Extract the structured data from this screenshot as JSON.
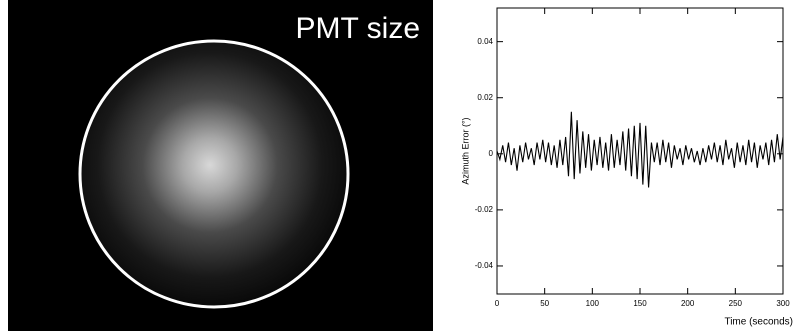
{
  "image": {
    "label": "PMT size"
  },
  "chart_data": {
    "type": "line",
    "y_label": "Azimuth Error (°)",
    "x_label": "Time (seconds)",
    "color": "#000000",
    "xlim": [
      0,
      300
    ],
    "xticks": [
      0,
      50,
      100,
      150,
      200,
      250,
      300
    ],
    "ylim": [
      -0.05,
      0.052
    ],
    "yticks": [
      -0.04,
      -0.02,
      0,
      0.02,
      0.04
    ],
    "grid": false,
    "x": [
      0,
      3,
      6,
      9,
      12,
      15,
      18,
      21,
      24,
      27,
      30,
      33,
      36,
      39,
      42,
      45,
      48,
      51,
      54,
      57,
      60,
      63,
      66,
      69,
      72,
      75,
      78,
      81,
      84,
      87,
      90,
      93,
      96,
      99,
      102,
      105,
      108,
      111,
      114,
      117,
      120,
      123,
      126,
      129,
      132,
      135,
      138,
      141,
      144,
      147,
      150,
      153,
      156,
      159,
      162,
      165,
      168,
      171,
      174,
      177,
      180,
      183,
      186,
      189,
      192,
      195,
      198,
      201,
      204,
      207,
      210,
      213,
      216,
      219,
      222,
      225,
      228,
      231,
      234,
      237,
      240,
      243,
      246,
      249,
      252,
      255,
      258,
      261,
      264,
      267,
      270,
      273,
      276,
      279,
      282,
      285,
      288,
      291,
      294,
      297,
      300
    ],
    "values": [
      0.001,
      -0.002,
      0.003,
      -0.003,
      0.004,
      -0.004,
      0.002,
      -0.006,
      0.003,
      -0.003,
      0.004,
      -0.002,
      0.002,
      -0.004,
      0.004,
      -0.002,
      0.005,
      -0.003,
      0.004,
      -0.004,
      0.003,
      -0.005,
      0.005,
      -0.004,
      0.006,
      -0.008,
      0.015,
      -0.009,
      0.012,
      -0.007,
      0.008,
      -0.005,
      0.007,
      -0.006,
      0.005,
      -0.004,
      0.006,
      -0.005,
      0.004,
      -0.006,
      0.007,
      -0.005,
      0.005,
      -0.004,
      0.008,
      -0.006,
      0.009,
      -0.008,
      0.01,
      -0.009,
      0.011,
      -0.011,
      0.01,
      -0.012,
      0.004,
      -0.003,
      0.004,
      -0.004,
      0.005,
      -0.003,
      0.004,
      -0.005,
      0.003,
      -0.002,
      0.002,
      -0.004,
      0.003,
      -0.002,
      0.002,
      -0.003,
      0.001,
      -0.004,
      0.002,
      -0.003,
      0.003,
      -0.002,
      0.004,
      -0.003,
      0.003,
      -0.004,
      0.005,
      -0.002,
      0.002,
      -0.005,
      0.004,
      -0.003,
      0.003,
      -0.004,
      0.005,
      -0.003,
      0.004,
      -0.005,
      0.003,
      -0.002,
      0.004,
      -0.004,
      0.005,
      -0.003,
      0.007,
      -0.002,
      0.006
    ]
  }
}
